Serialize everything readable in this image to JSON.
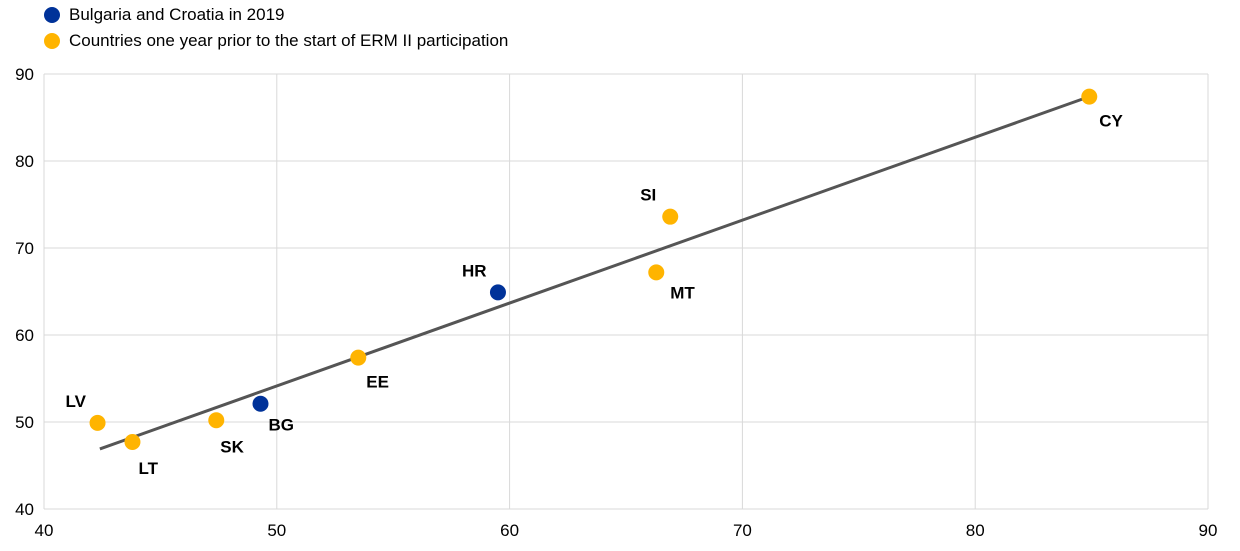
{
  "chart_data": {
    "type": "scatter",
    "title": "",
    "xlabel": "",
    "ylabel": "",
    "xlim": [
      40,
      90
    ],
    "ylim": [
      40,
      90
    ],
    "xticks": [
      40,
      50,
      60,
      70,
      80,
      90
    ],
    "yticks": [
      40,
      50,
      60,
      70,
      80,
      90
    ],
    "grid": true,
    "legend_placement": "top-left",
    "series": [
      {
        "name": "Bulgaria and Croatia in 2019",
        "color": "#003299",
        "points": [
          {
            "label": "BG",
            "x": 49.3,
            "y": 52.1
          },
          {
            "label": "HR",
            "x": 59.5,
            "y": 64.9
          }
        ]
      },
      {
        "name": "Countries one year prior to the start of ERM II participation",
        "color": "#FFB400",
        "points": [
          {
            "label": "LV",
            "x": 42.3,
            "y": 49.9
          },
          {
            "label": "LT",
            "x": 43.8,
            "y": 47.7
          },
          {
            "label": "SK",
            "x": 47.4,
            "y": 50.2
          },
          {
            "label": "EE",
            "x": 53.5,
            "y": 57.4
          },
          {
            "label": "MT",
            "x": 66.3,
            "y": 67.2
          },
          {
            "label": "SI",
            "x": 66.9,
            "y": 73.6
          },
          {
            "label": "CY",
            "x": 84.9,
            "y": 87.4
          }
        ]
      }
    ],
    "trendline": {
      "color": "#555555",
      "from": {
        "x": 42.4,
        "y": 46.9
      },
      "to": {
        "x": 84.9,
        "y": 87.4
      }
    }
  }
}
